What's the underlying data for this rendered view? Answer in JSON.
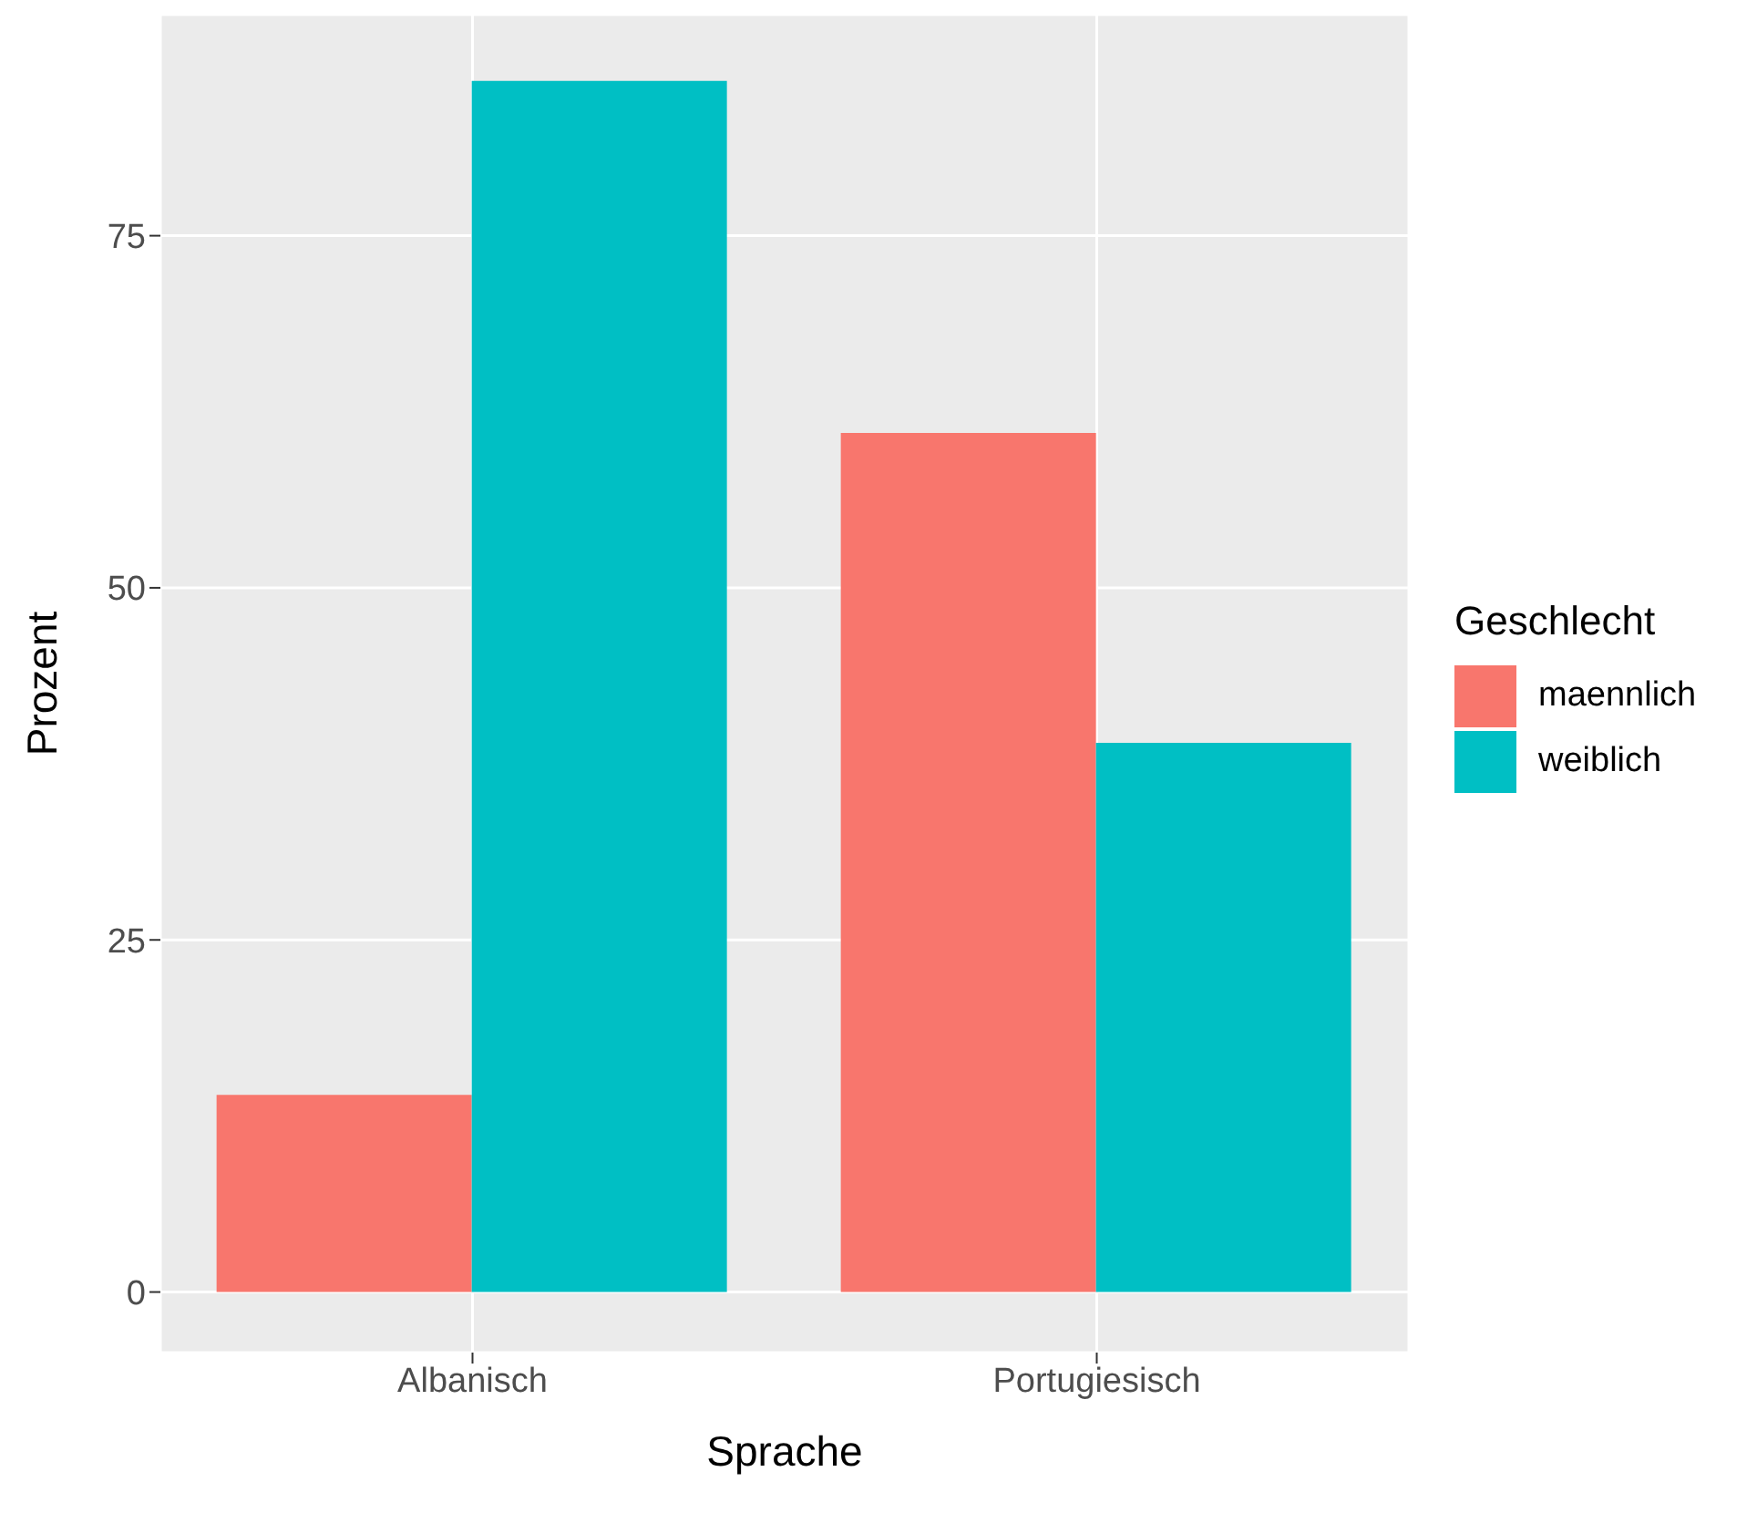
{
  "chart_data": {
    "type": "bar",
    "xlabel": "Sprache",
    "ylabel": "Prozent",
    "legend_title": "Geschlecht",
    "categories": [
      "Albanisch",
      "Portugiesisch"
    ],
    "series": [
      {
        "name": "maennlich",
        "color": "#f8766d",
        "values": [
          14,
          61
        ]
      },
      {
        "name": "weiblich",
        "color": "#00bfc4",
        "values": [
          86,
          39
        ]
      }
    ],
    "ylim": [
      -4.3,
      90.7
    ],
    "yticks": [
      0,
      25,
      50,
      75
    ],
    "grid": true,
    "legend": "right"
  }
}
